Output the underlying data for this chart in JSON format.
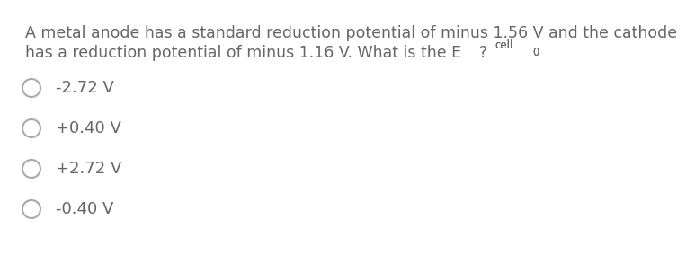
{
  "background_color": "#ffffff",
  "question_line1": "A metal anode has a standard reduction potential of minus 1.56 V and the cathode",
  "question_line2": "has a reduction potential of minus 1.16 V. What is the E",
  "superscript": "0",
  "subscript": "cell",
  "question_end": "?",
  "options": [
    "-2.72 V",
    "+0.40 V",
    "+2.72 V",
    "-0.40 V"
  ],
  "text_color": "#666666",
  "circle_color": "#aaaaaa",
  "font_size_question": 12.5,
  "font_size_options": 13.0,
  "font_size_super": 8.5,
  "font_size_sub": 8.5
}
